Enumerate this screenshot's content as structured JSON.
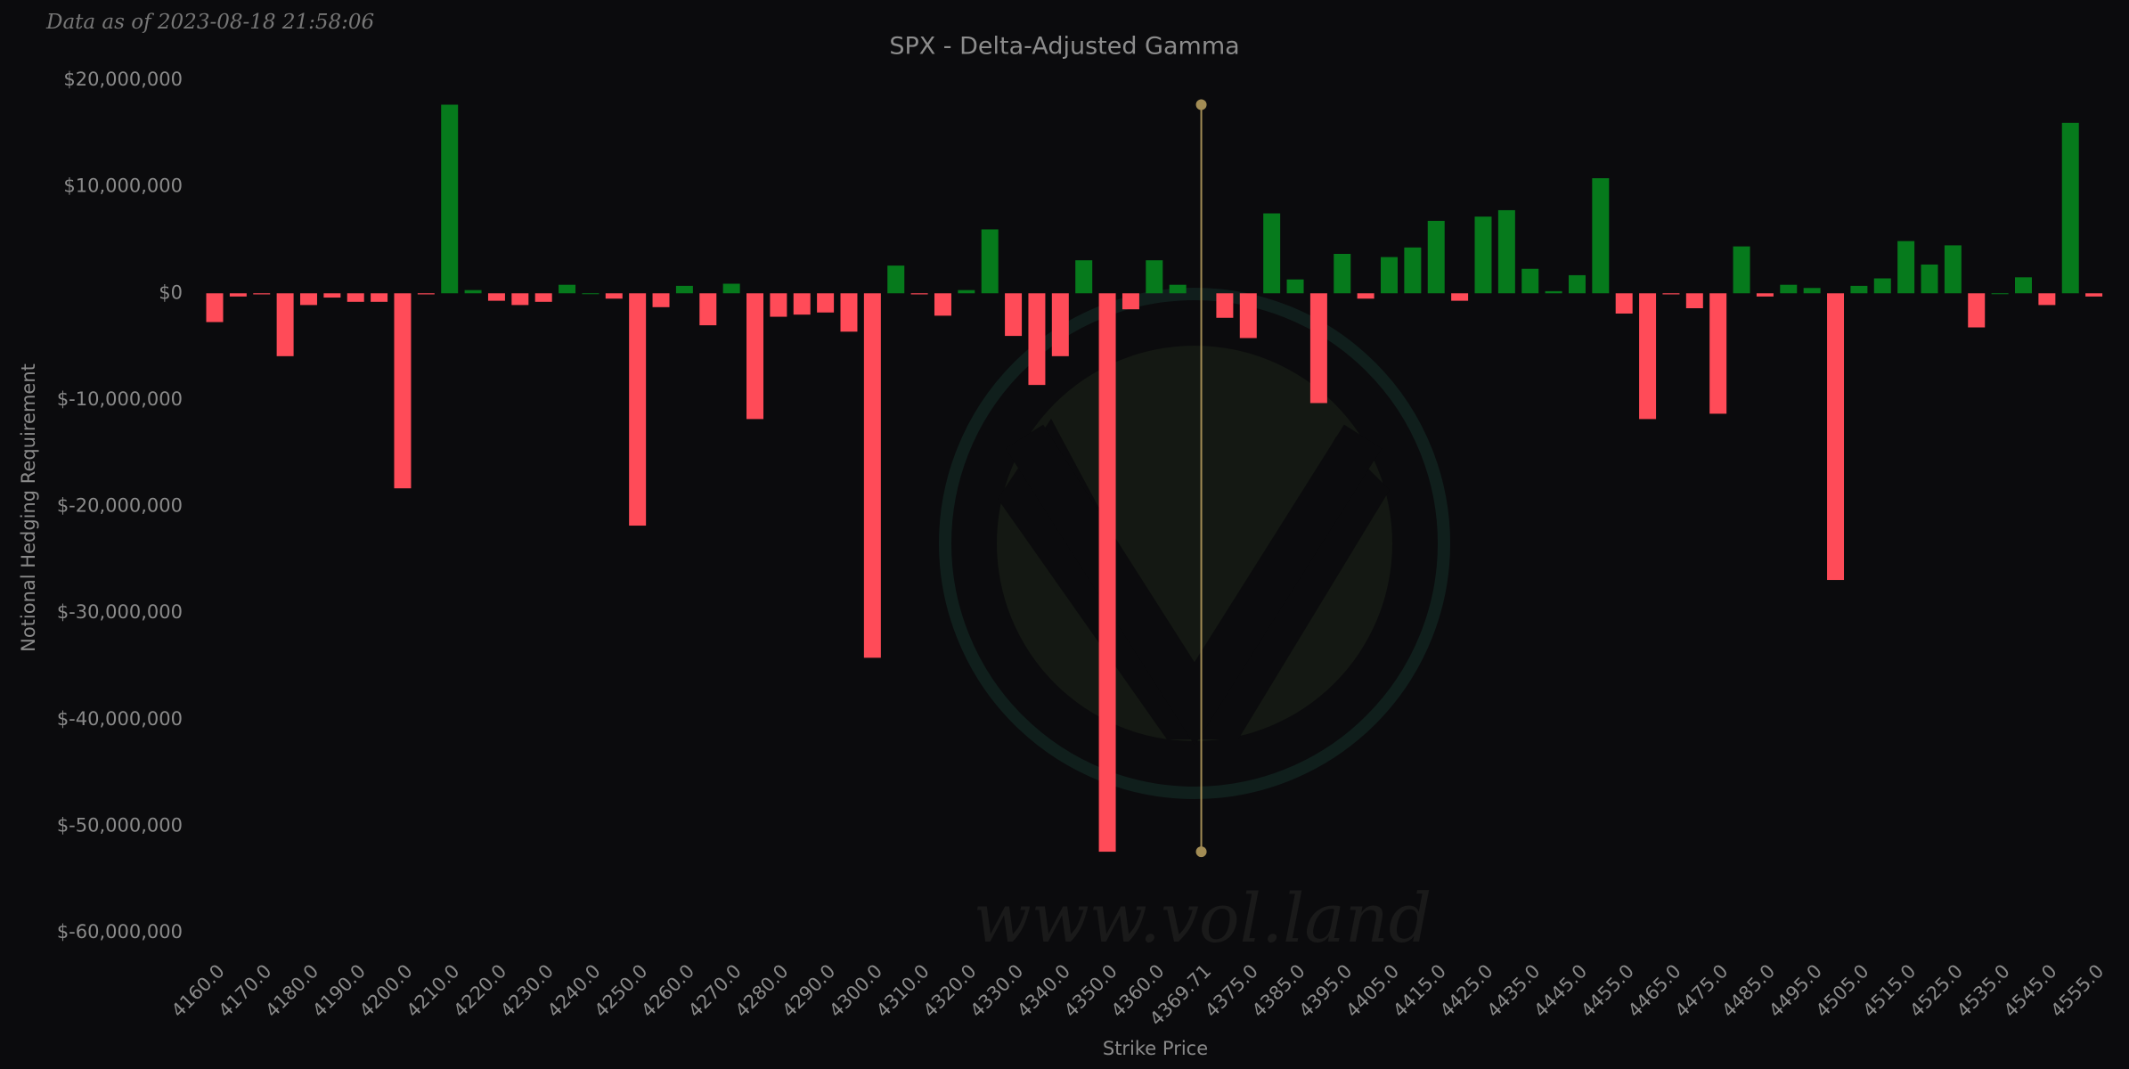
{
  "chart_data": {
    "type": "bar",
    "note": "Data as of 2023-08-18 21:58:06",
    "title": "SPX - Delta-Adjusted Gamma",
    "xlabel": "Strike Price",
    "ylabel": "Notional Hedging Requirement",
    "watermark": "www.vol.land",
    "positive_color": "#067a1c",
    "negative_color": "#ff4b58",
    "reference_color": "#a38d55",
    "reference_line": {
      "x": "4369.71"
    },
    "categories": [
      "4160.0",
      null,
      "4170.0",
      null,
      "4180.0",
      null,
      "4190.0",
      null,
      "4200.0",
      null,
      "4210.0",
      null,
      "4220.0",
      null,
      "4230.0",
      null,
      "4240.0",
      null,
      "4250.0",
      null,
      "4260.0",
      null,
      "4270.0",
      null,
      "4280.0",
      null,
      "4290.0",
      null,
      "4300.0",
      null,
      "4310.0",
      null,
      "4320.0",
      null,
      "4330.0",
      null,
      "4340.0",
      null,
      "4350.0",
      null,
      "4360.0",
      null,
      "4369.71",
      null,
      "4375.0",
      null,
      "4385.0",
      null,
      "4395.0",
      null,
      "4405.0",
      null,
      "4415.0",
      null,
      "4425.0",
      null,
      "4435.0",
      null,
      "4445.0",
      null,
      "4455.0",
      null,
      "4465.0",
      null,
      "4475.0",
      null,
      "4485.0",
      null,
      "4495.0",
      null,
      "4505.0",
      null,
      "4515.0",
      null,
      "4525.0",
      null,
      "4535.0",
      null,
      "4545.0",
      null,
      "4555.0"
    ],
    "values": [
      -2700000,
      -300000,
      -100000,
      -5900000,
      -1100000,
      -400000,
      -800000,
      -800000,
      -18300000,
      -100000,
      17700000,
      300000,
      -700000,
      -1100000,
      -800000,
      800000,
      0,
      -500000,
      -21800000,
      -1300000,
      700000,
      -3000000,
      900000,
      -11800000,
      -2200000,
      -2000000,
      -1800000,
      -3600000,
      -34200000,
      2600000,
      -100000,
      -2100000,
      300000,
      6000000,
      -4000000,
      -8600000,
      -5900000,
      3100000,
      -52400000,
      -1500000,
      3100000,
      800000,
      null,
      -2300000,
      -4200000,
      7500000,
      1300000,
      -10300000,
      3700000,
      -500000,
      3400000,
      4300000,
      6800000,
      -700000,
      7200000,
      7800000,
      2300000,
      200000,
      1700000,
      10800000,
      -1900000,
      -11800000,
      -100000,
      -1400000,
      -11300000,
      4400000,
      -300000,
      800000,
      500000,
      -26900000,
      700000,
      1400000,
      4900000,
      2700000,
      4500000,
      -3200000,
      0,
      1500000,
      -1100000,
      16000000,
      -300000
    ],
    "ylim": [
      -60000000,
      20000000
    ],
    "yticks": [
      {
        "value": -60000000,
        "label": "$-60,000,000"
      },
      {
        "value": -50000000,
        "label": "$-50,000,000"
      },
      {
        "value": -40000000,
        "label": "$-40,000,000"
      },
      {
        "value": -30000000,
        "label": "$-30,000,000"
      },
      {
        "value": -20000000,
        "label": "$-20,000,000"
      },
      {
        "value": -10000000,
        "label": "$-10,000,000"
      },
      {
        "value": 0,
        "label": "$0"
      },
      {
        "value": 10000000,
        "label": "$10,000,000"
      },
      {
        "value": 20000000,
        "label": "$20,000,000"
      }
    ],
    "grid": false
  }
}
